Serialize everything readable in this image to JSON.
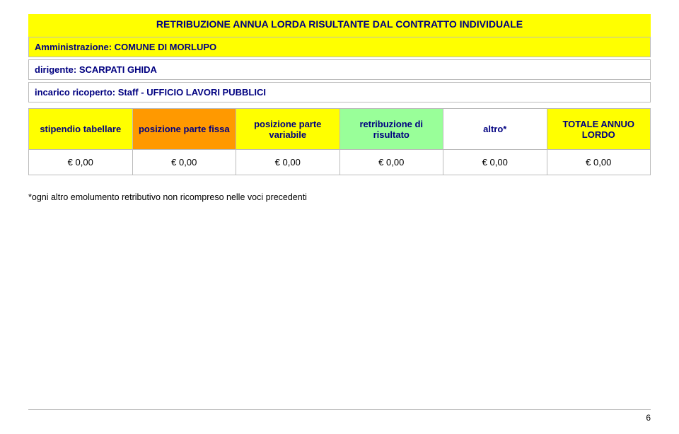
{
  "title": {
    "text": "RETRIBUZIONE ANNUA LORDA RISULTANTE DAL CONTRATTO INDIVIDUALE",
    "bg": "#ffff00",
    "color": "#000080",
    "fontsize": 14
  },
  "meta": {
    "rows": [
      {
        "label": "Amministrazione: COMUNE DI MORLUPO",
        "bg": "#ffff00"
      },
      {
        "label": "dirigente: SCARPATI GHIDA",
        "bg": "#ffffff"
      },
      {
        "label": "incarico ricoperto: Staff - UFFICIO LAVORI PUBBLICI",
        "bg": "#ffffff"
      }
    ]
  },
  "table": {
    "columns": [
      {
        "label": "stipendio tabellare",
        "bg": "#ffff00"
      },
      {
        "label": "posizione parte fissa",
        "bg": "#ff9900"
      },
      {
        "label": "posizione parte variabile",
        "bg": "#ffff00"
      },
      {
        "label": "retribuzione di risultato",
        "bg": "#99ff99"
      },
      {
        "label": "altro*",
        "bg": "#ffffff"
      },
      {
        "label": "TOTALE ANNUO LORDO",
        "bg": "#ffff00"
      }
    ],
    "rows": [
      [
        "€ 0,00",
        "€ 0,00",
        "€ 0,00",
        "€ 0,00",
        "€ 0,00",
        "€ 0,00"
      ]
    ],
    "header_fontsize": 13,
    "cell_fontsize": 13,
    "border_color": "#bbbbbb"
  },
  "footnote": "*ogni altro emolumento retributivo non ricompreso nelle voci precedenti",
  "page_number": "6"
}
